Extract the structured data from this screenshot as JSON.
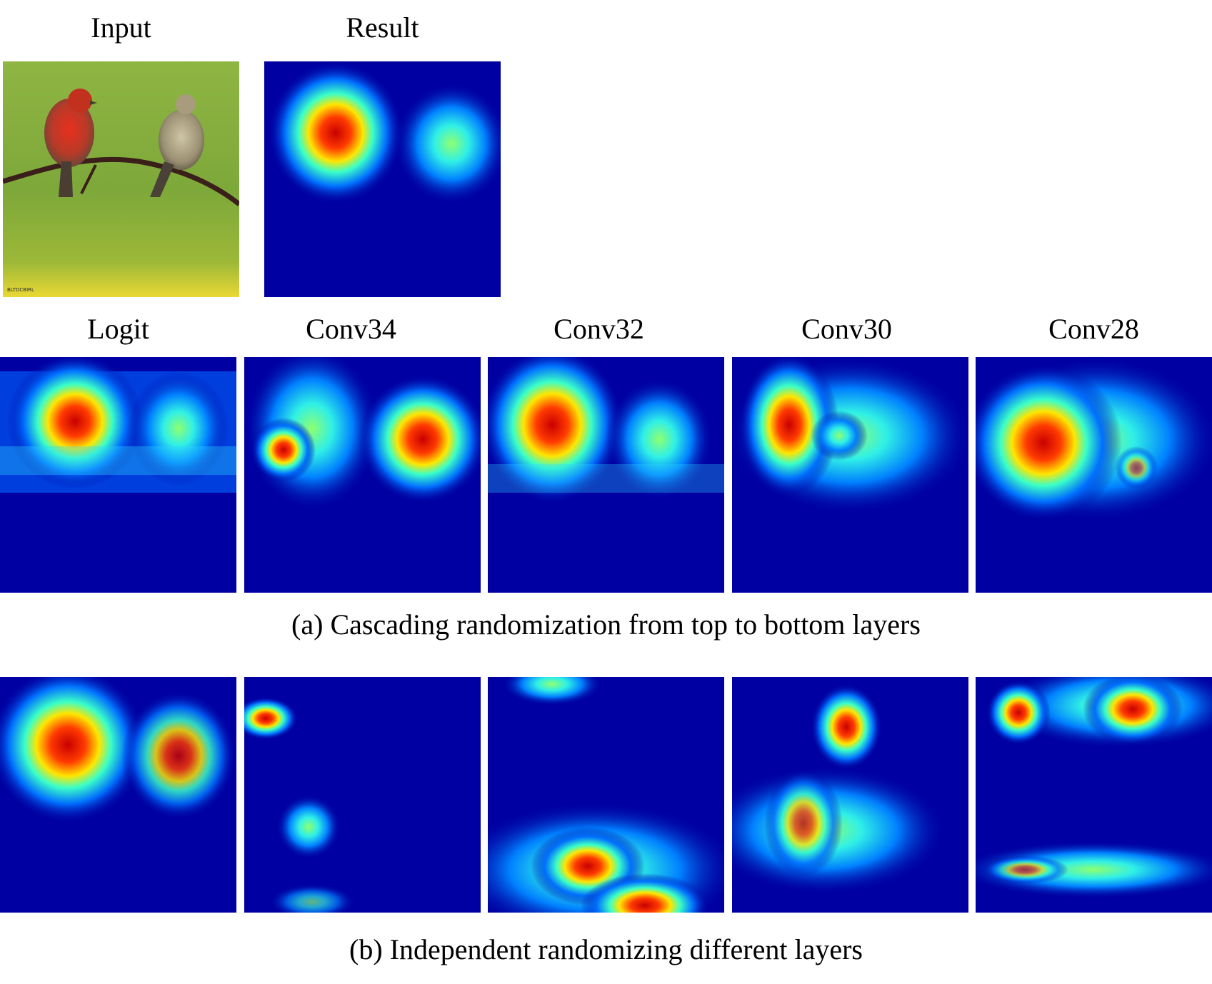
{
  "figure": {
    "top_labels": {
      "input": "Input",
      "result": "Result"
    },
    "layer_labels": [
      "Logit",
      "Conv34",
      "Conv32",
      "Conv30",
      "Conv28"
    ],
    "captions": {
      "a": "(a) Cascading randomization from top to bottom layers",
      "b": "(b) Independent randomizing different layers"
    },
    "input_watermark": "BLTDCBIRL"
  },
  "colors": {
    "background": "#ffffff",
    "heatmap_low": "#00008f",
    "heatmap_high": "#d40000",
    "input_background_top": "#8db34a",
    "input_background_bottom": "#e8d63a"
  }
}
